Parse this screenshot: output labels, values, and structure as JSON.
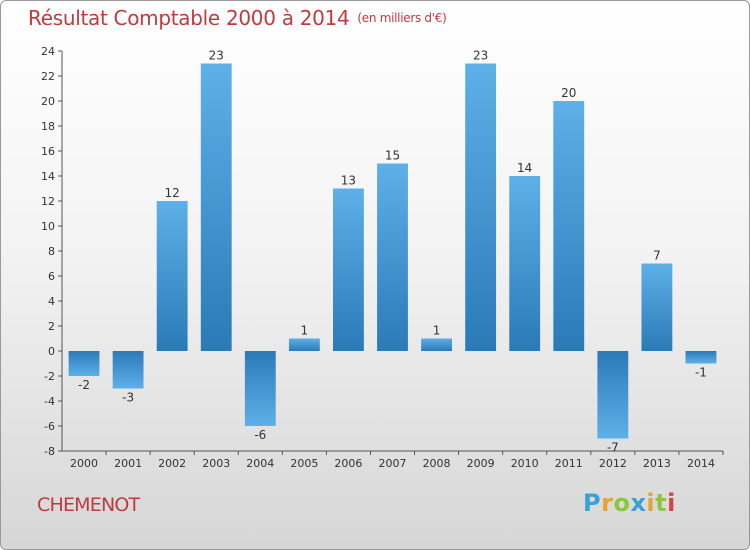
{
  "header": {
    "title": "Résultat Comptable 2000 à 2014",
    "subtitle": "(en milliers d'€)"
  },
  "commune": "CHEMENOT",
  "brand": {
    "name": "Proxiti",
    "letters": [
      {
        "ch": "P",
        "color": "#3aa0d8"
      },
      {
        "ch": "r",
        "color": "#e8a23a"
      },
      {
        "ch": "o",
        "color": "#8cc63e"
      },
      {
        "ch": "x",
        "color": "#3aa0d8"
      },
      {
        "ch": "i",
        "color": "#e8a23a"
      },
      {
        "ch": "t",
        "color": "#8cc63e"
      },
      {
        "ch": "i",
        "color": "#d6404a"
      }
    ]
  },
  "colors": {
    "bar_top": "#5eb0e8",
    "bar_bottom": "#2a7ab8",
    "title": "#c03a3e"
  },
  "chart_data": {
    "type": "bar",
    "title": "Résultat Comptable 2000 à 2014",
    "subtitle": "(en milliers d'€)",
    "xlabel": "",
    "ylabel": "",
    "categories": [
      "2000",
      "2001",
      "2002",
      "2003",
      "2004",
      "2005",
      "2006",
      "2007",
      "2008",
      "2009",
      "2010",
      "2011",
      "2012",
      "2013",
      "2014"
    ],
    "values": [
      -2,
      -3,
      12,
      23,
      -6,
      1,
      13,
      15,
      1,
      23,
      14,
      20,
      -7,
      7,
      -1
    ],
    "ylim": [
      -8,
      24
    ],
    "yticks": [
      -8,
      -6,
      -4,
      -2,
      0,
      2,
      4,
      6,
      8,
      10,
      12,
      14,
      16,
      18,
      20,
      22,
      24
    ],
    "grid": false
  }
}
